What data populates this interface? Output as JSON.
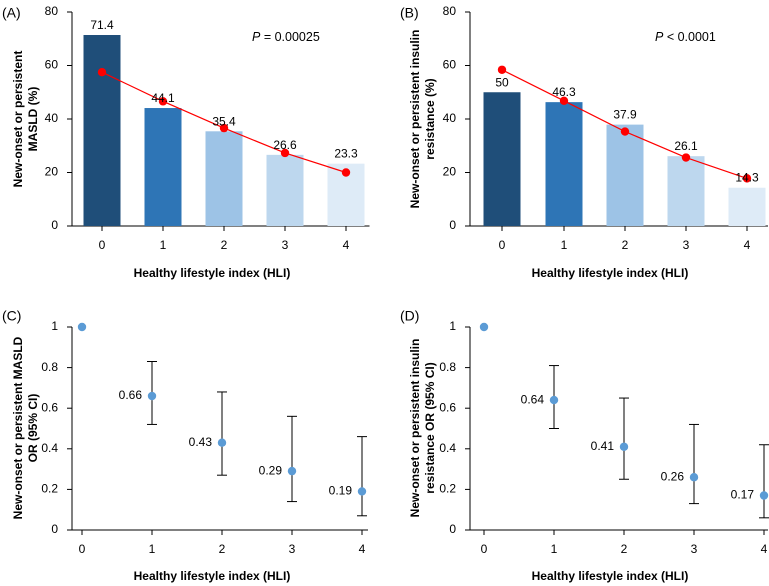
{
  "chart_data": [
    {
      "panel_label": "(A)",
      "type": "bar",
      "categories": [
        "0",
        "1",
        "2",
        "3",
        "4"
      ],
      "values": [
        71.4,
        44.1,
        35.4,
        26.6,
        23.3
      ],
      "value_labels": [
        "71.4",
        "44.1",
        "35.4",
        "26.6",
        "23.3"
      ],
      "bar_colors": [
        "#1f4e79",
        "#2e75b6",
        "#9dc3e6",
        "#bdd7ee",
        "#deebf7"
      ],
      "trend_line": {
        "values": [
          57.5,
          46.6,
          36.6,
          27.3,
          20.0
        ],
        "color": "#ff0000"
      },
      "annotation": {
        "italic": "P",
        "rest": " = 0.00025"
      },
      "xlabel": "Healthy lifestyle index (HLI)",
      "ylabel_lines": [
        "New-onset or persistent",
        "MASLD (%)"
      ],
      "ylim": [
        0,
        80
      ],
      "yticks": [
        0,
        20,
        40,
        60,
        80
      ],
      "yticklabels": [
        "0",
        "20",
        "40",
        "60",
        "80"
      ]
    },
    {
      "panel_label": "(B)",
      "type": "bar",
      "categories": [
        "0",
        "1",
        "2",
        "3",
        "4"
      ],
      "values": [
        50,
        46.3,
        37.9,
        26.1,
        14.3
      ],
      "value_labels": [
        "50",
        "46.3",
        "37.9",
        "26.1",
        "14.3"
      ],
      "bar_colors": [
        "#1f4e79",
        "#2e75b6",
        "#9dc3e6",
        "#bdd7ee",
        "#deebf7"
      ],
      "trend_line": {
        "values": [
          58.4,
          46.8,
          35.3,
          25.6,
          17.8
        ],
        "color": "#ff0000"
      },
      "annotation": {
        "italic": "P",
        "rest": " < 0.0001"
      },
      "xlabel": "Healthy lifestyle index (HLI)",
      "ylabel_lines": [
        "New-onset or persistent insulin",
        "resistance (%)"
      ],
      "ylim": [
        0,
        80
      ],
      "yticks": [
        0,
        20,
        40,
        60,
        80
      ],
      "yticklabels": [
        "0",
        "20",
        "40",
        "60",
        "80"
      ]
    },
    {
      "panel_label": "(C)",
      "type": "scatter",
      "categories": [
        "0",
        "1",
        "2",
        "3",
        "4"
      ],
      "values": [
        1.0,
        0.66,
        0.43,
        0.29,
        0.19
      ],
      "value_labels": [
        "",
        "0.66",
        "0.43",
        "0.29",
        "0.19"
      ],
      "ci_lower": [
        null,
        0.52,
        0.27,
        0.14,
        0.07
      ],
      "ci_upper": [
        null,
        0.83,
        0.68,
        0.56,
        0.46
      ],
      "point_color": "#5b9bd5",
      "xlabel": "Healthy lifestyle index (HLI)",
      "ylabel_lines": [
        "New-onset or persistent MASLD",
        "OR (95% CI)"
      ],
      "ylim": [
        0,
        1
      ],
      "yticks": [
        0,
        0.2,
        0.4,
        0.6,
        0.8,
        1
      ],
      "yticklabels": [
        "0",
        "0.2",
        "0.4",
        "0.6",
        "0.8",
        "1"
      ]
    },
    {
      "panel_label": "(D)",
      "type": "scatter",
      "categories": [
        "0",
        "1",
        "2",
        "3",
        "4"
      ],
      "values": [
        1.0,
        0.64,
        0.41,
        0.26,
        0.17
      ],
      "value_labels": [
        "",
        "0.64",
        "0.41",
        "0.26",
        "0.17"
      ],
      "ci_lower": [
        null,
        0.5,
        0.25,
        0.13,
        0.06
      ],
      "ci_upper": [
        null,
        0.81,
        0.65,
        0.52,
        0.42
      ],
      "point_color": "#5b9bd5",
      "xlabel": "Healthy lifestyle index (HLI)",
      "ylabel_lines": [
        "New-onset or persistent insulin",
        "resistance OR (95% CI)"
      ],
      "ylim": [
        0,
        1
      ],
      "yticks": [
        0,
        0.2,
        0.4,
        0.6,
        0.8,
        1
      ],
      "yticklabels": [
        "0",
        "0.2",
        "0.4",
        "0.6",
        "0.8",
        "1"
      ]
    }
  ]
}
